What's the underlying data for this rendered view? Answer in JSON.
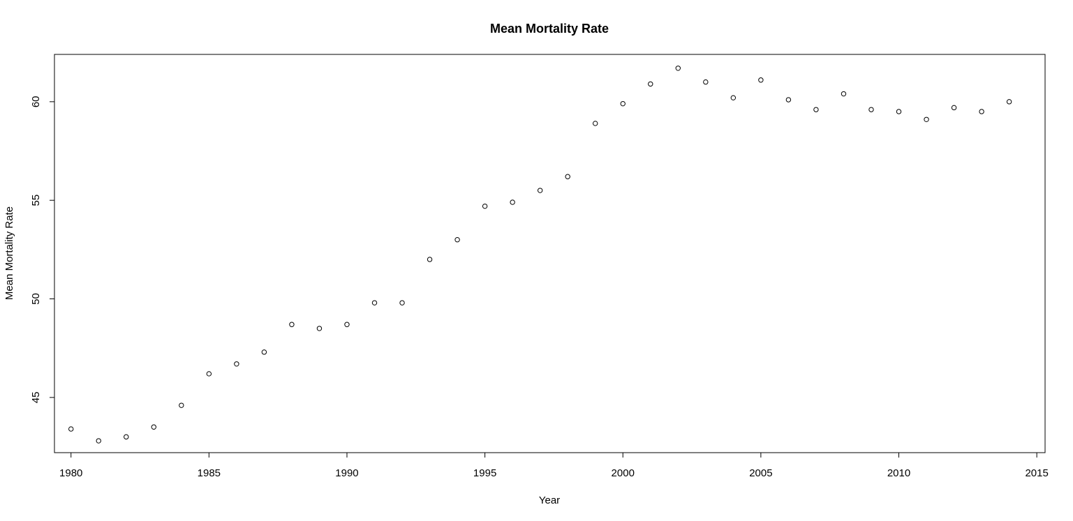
{
  "chart_data": {
    "type": "scatter",
    "title": "Mean Mortality Rate",
    "xlabel": "Year",
    "ylabel": "Mean Mortality Rate",
    "xlim": [
      1979.4,
      2015.3
    ],
    "ylim": [
      42.2,
      62.4
    ],
    "xticks": [
      1980,
      1985,
      1990,
      1995,
      2000,
      2005,
      2010,
      2015
    ],
    "yticks": [
      45,
      50,
      55,
      60
    ],
    "grid": false,
    "legend": "none",
    "series": [
      {
        "x": [
          1980,
          1981,
          1982,
          1983,
          1984,
          1985,
          1986,
          1987,
          1988,
          1989,
          1990,
          1991,
          1992,
          1993,
          1994,
          1995,
          1996,
          1997,
          1998,
          1999,
          2000,
          2001,
          2002,
          2003,
          2004,
          2005,
          2006,
          2007,
          2008,
          2009,
          2010,
          2011,
          2012,
          2013,
          2014
        ],
        "y": [
          43.4,
          42.8,
          43.0,
          43.5,
          44.6,
          46.2,
          46.7,
          47.3,
          48.7,
          48.5,
          48.7,
          49.8,
          49.8,
          52.0,
          53.0,
          54.7,
          54.9,
          55.5,
          56.2,
          58.9,
          59.9,
          60.9,
          61.7,
          61.0,
          60.2,
          61.1,
          60.1,
          59.6,
          60.4,
          59.6,
          59.5,
          59.1,
          59.7,
          59.5,
          60.0
        ]
      }
    ]
  }
}
